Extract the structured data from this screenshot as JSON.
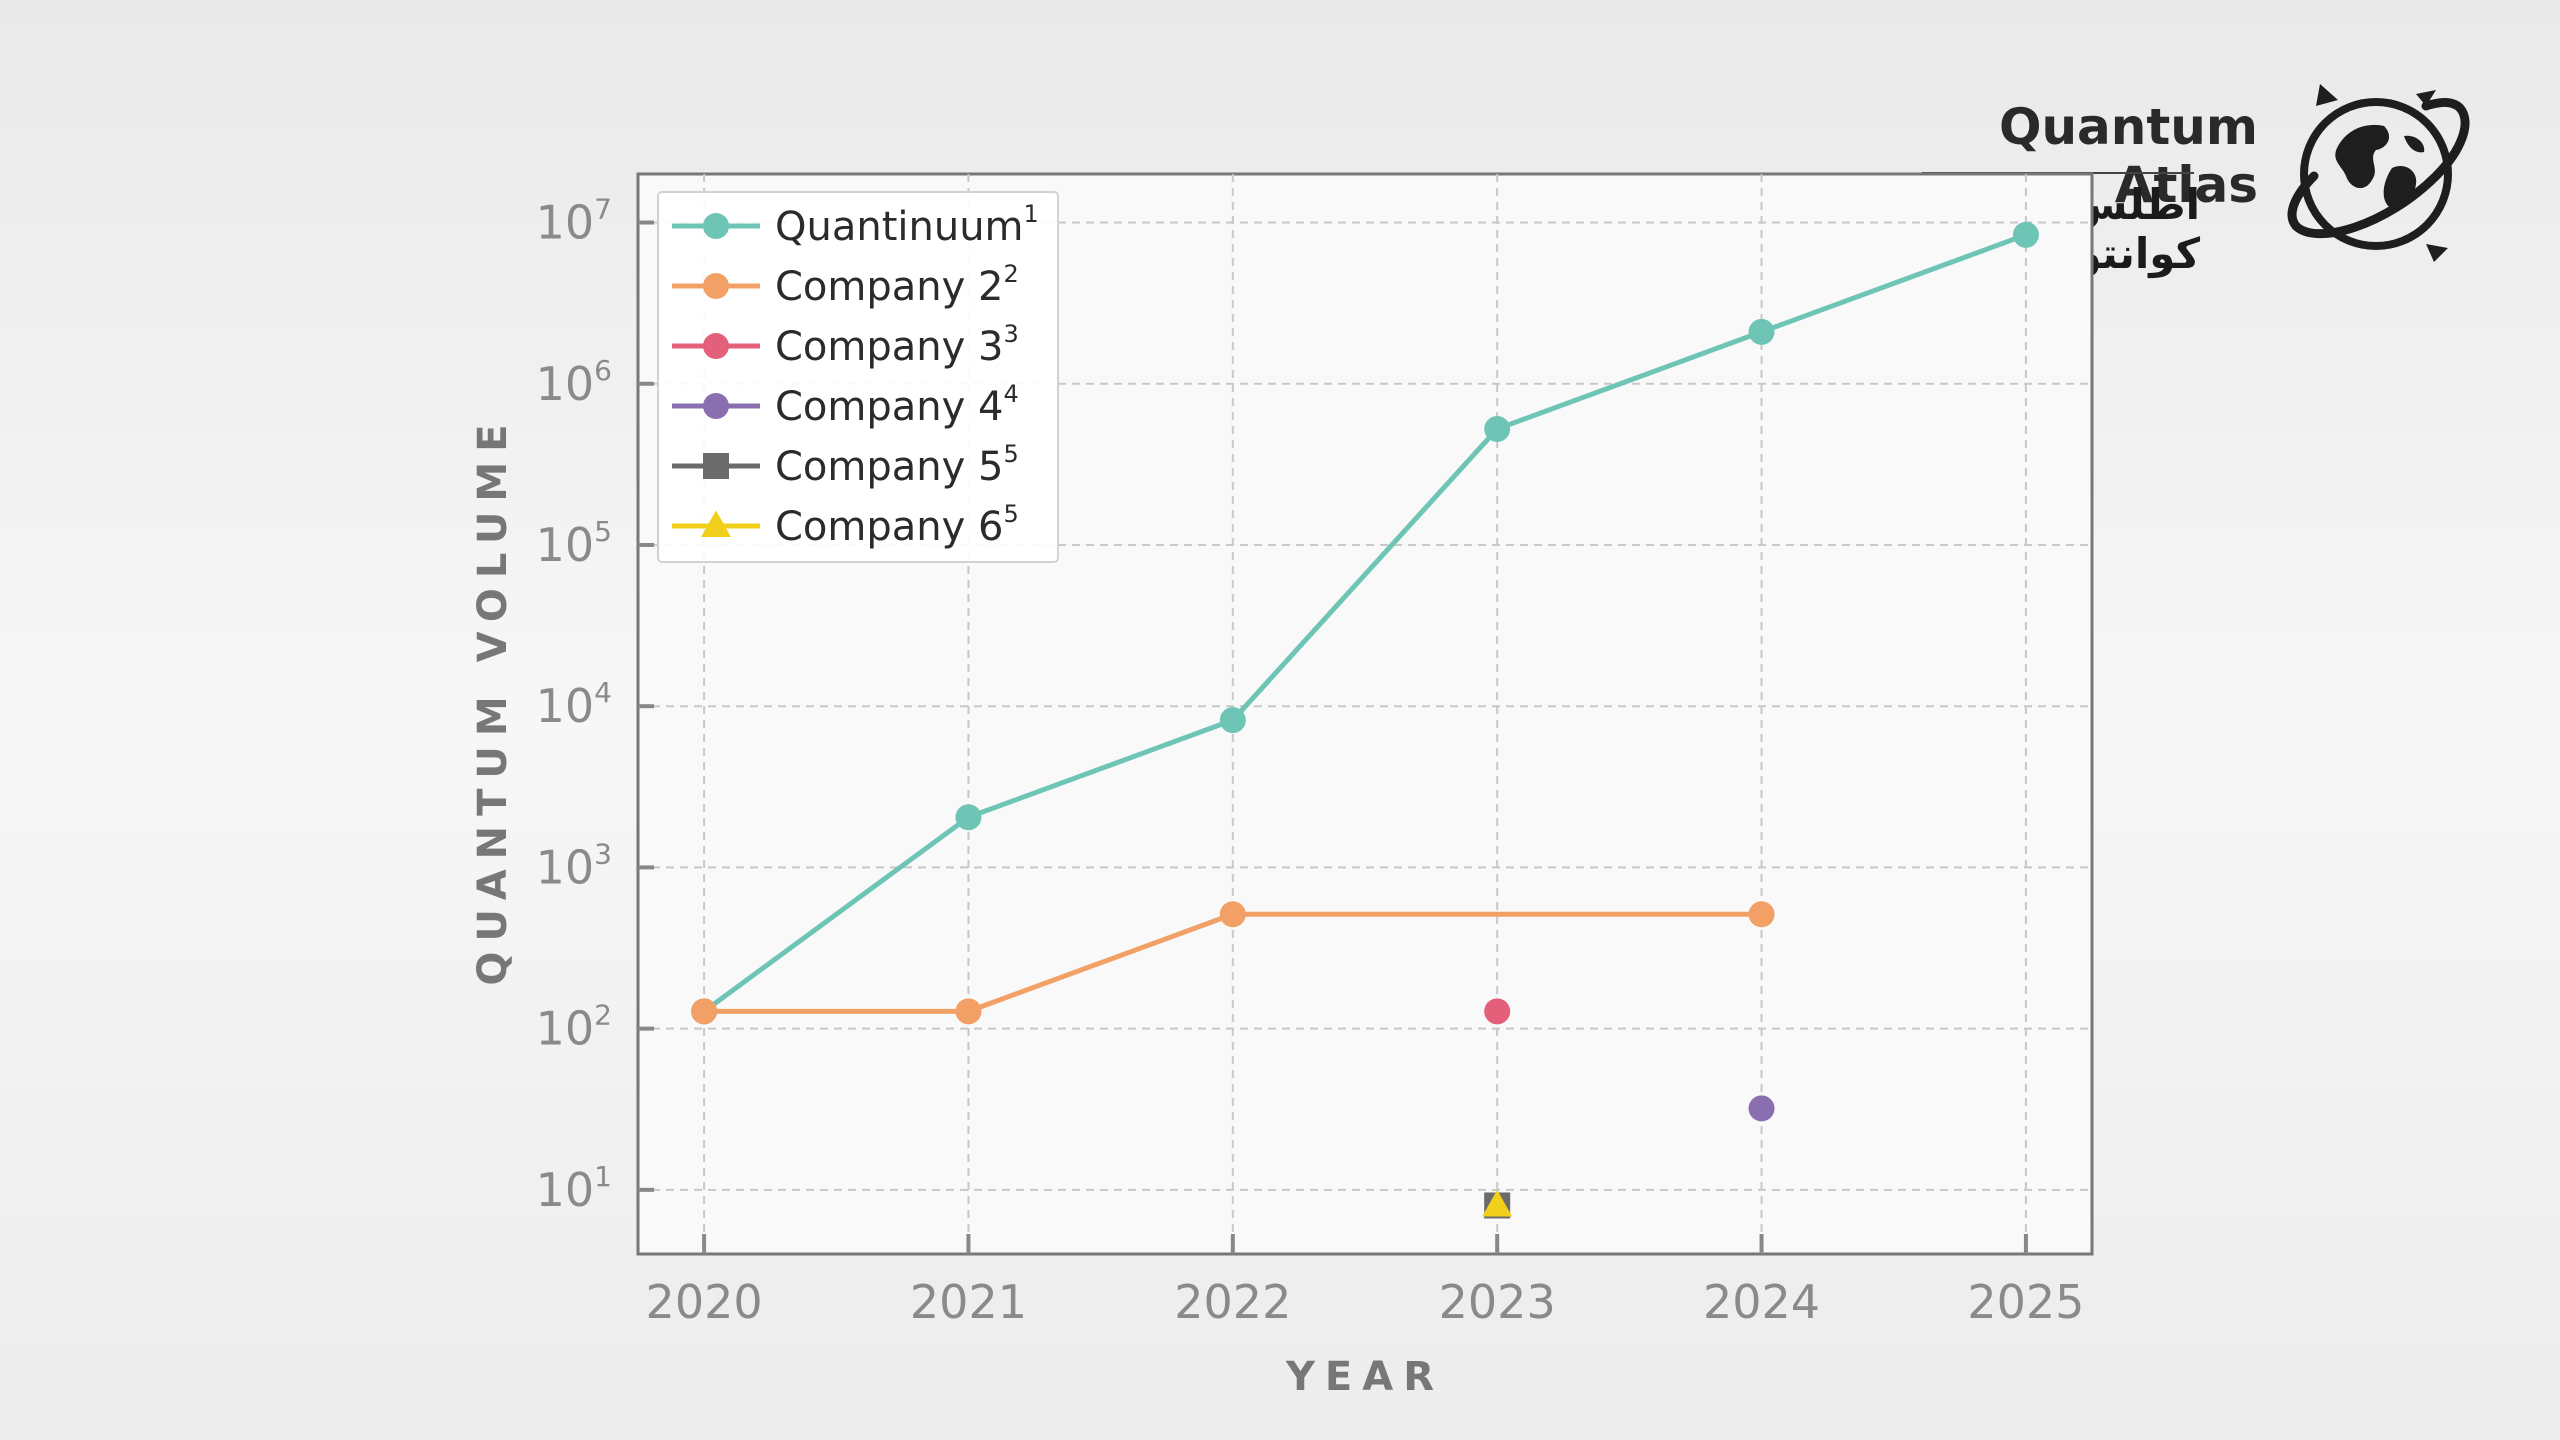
{
  "brand": {
    "name_en": "Quantum Atlas",
    "name_fa": "اطلس کوانتوم"
  },
  "colors": {
    "quantinuum": "#6ec5b6",
    "company2": "#f2a066",
    "company3": "#e4607a",
    "company4": "#8a6fb0",
    "company5": "#6b6b6b",
    "company6": "#f2cf1a",
    "grid": "#c8c8c8",
    "axis": "#888888"
  },
  "chart_data": {
    "type": "line",
    "xlabel": "YEAR",
    "ylabel": "QUANTUM VOLUME",
    "yscale": "log",
    "x_ticks": [
      "2020",
      "2021",
      "2022",
      "2023",
      "2024",
      "2025"
    ],
    "y_ticks": [
      {
        "base": "10",
        "exp": "1"
      },
      {
        "base": "10",
        "exp": "2"
      },
      {
        "base": "10",
        "exp": "3"
      },
      {
        "base": "10",
        "exp": "4"
      },
      {
        "base": "10",
        "exp": "5"
      },
      {
        "base": "10",
        "exp": "6"
      },
      {
        "base": "10",
        "exp": "7"
      }
    ],
    "xlim": [
      2019.75,
      2025.25
    ],
    "ylim": [
      4,
      20000000
    ],
    "grid": true,
    "legend_position": "top-left",
    "series": [
      {
        "name": "Quantinuum",
        "sup": "1",
        "marker": "circle",
        "color_key": "quantinuum",
        "x": [
          2020,
          2021,
          2022,
          2023,
          2024,
          2025
        ],
        "y": [
          128,
          2048,
          8192,
          524288,
          2097152,
          8388608
        ]
      },
      {
        "name": "Company 2",
        "sup": "2",
        "marker": "circle",
        "color_key": "company2",
        "x": [
          2020,
          2021,
          2022,
          2024
        ],
        "y": [
          128,
          128,
          512,
          512
        ]
      },
      {
        "name": "Company 3",
        "sup": "3",
        "marker": "circle",
        "color_key": "company3",
        "x": [
          2023
        ],
        "y": [
          128
        ]
      },
      {
        "name": "Company 4",
        "sup": "4",
        "marker": "circle",
        "color_key": "company4",
        "x": [
          2024
        ],
        "y": [
          32
        ]
      },
      {
        "name": "Company 5",
        "sup": "5",
        "marker": "square",
        "color_key": "company5",
        "x": [
          2023
        ],
        "y": [
          8
        ]
      },
      {
        "name": "Company 6",
        "sup": "5",
        "marker": "triangle",
        "color_key": "company6",
        "x": [
          2023
        ],
        "y": [
          8
        ]
      }
    ]
  }
}
